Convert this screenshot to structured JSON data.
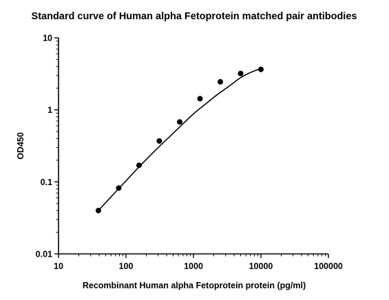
{
  "chart_data": {
    "type": "scatter",
    "title": "Standard curve of Human alpha Fetoprotein matched pair antibodies",
    "xlabel": "Recombinant Human alpha Fetoprotein protein (pg/ml)",
    "ylabel": "OD450",
    "x_scale": "log",
    "y_scale": "log",
    "xlim": [
      10,
      100000
    ],
    "ylim": [
      0.01,
      10
    ],
    "x_ticks": [
      10,
      100,
      1000,
      10000,
      100000
    ],
    "x_tick_labels": [
      "10",
      "100",
      "1000",
      "10000",
      "100000"
    ],
    "y_ticks": [
      0.01,
      0.1,
      1,
      10
    ],
    "y_tick_labels": [
      "0.01",
      "0.1",
      "1",
      "10"
    ],
    "grid": false,
    "series": [
      {
        "x": [
          39,
          78,
          156,
          312,
          625,
          1250,
          2500,
          5000,
          10000
        ],
        "y": [
          0.04,
          0.082,
          0.17,
          0.37,
          0.68,
          1.43,
          2.45,
          3.2,
          3.65
        ]
      }
    ],
    "fit_curve": {
      "x": [
        39,
        60,
        90,
        140,
        200,
        300,
        450,
        650,
        1000,
        1500,
        2200,
        3300,
        5000,
        7000,
        10000
      ],
      "y": [
        0.04,
        0.062,
        0.093,
        0.145,
        0.205,
        0.3,
        0.43,
        0.6,
        0.88,
        1.2,
        1.6,
        2.1,
        2.8,
        3.3,
        3.75
      ]
    },
    "colors": {
      "points": "#000000",
      "curve": "#000000",
      "axes": "#000000"
    }
  }
}
